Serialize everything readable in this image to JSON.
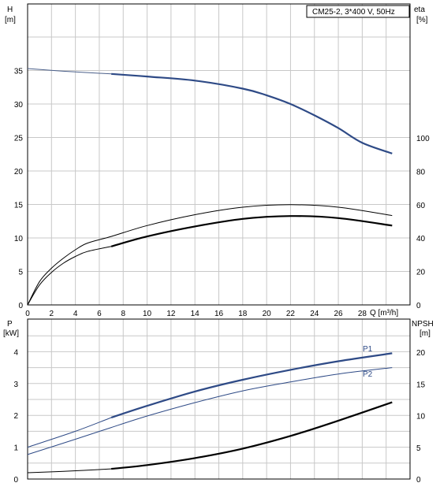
{
  "chart_data": [
    {
      "type": "line",
      "title": "CM25-2, 3*400 V, 50Hz",
      "left_axis": {
        "label": "H",
        "unit": "[m]",
        "ticks": [
          0,
          5,
          10,
          15,
          20,
          25,
          30,
          35
        ],
        "ylim": [
          0,
          40
        ]
      },
      "right_axis": {
        "label": "eta",
        "unit": "[%]",
        "ticks": [
          0,
          20,
          40,
          60,
          80,
          100
        ]
      },
      "x_axis": {
        "label": "Q [m³/h]",
        "ticks": [
          0,
          2,
          4,
          6,
          8,
          10,
          12,
          14,
          16,
          18,
          20,
          22,
          24,
          26,
          28
        ],
        "xlim": [
          0,
          32
        ]
      },
      "grid": true,
      "series": [
        {
          "axis": "left",
          "style": "thin",
          "color": "#4a5f8a",
          "x": [
            0,
            3,
            7
          ],
          "y": [
            35.3,
            34.9,
            34.5
          ]
        },
        {
          "axis": "left",
          "style": "thick",
          "color": "#2e4a86",
          "x": [
            7,
            10,
            14,
            18,
            20,
            22,
            24,
            26,
            28,
            30.5
          ],
          "y": [
            34.5,
            34.1,
            33.5,
            32.3,
            31.3,
            30.0,
            28.3,
            26.4,
            24.2,
            22.6
          ]
        },
        {
          "axis": "right",
          "style": "thin",
          "color": "#000000",
          "x": [
            0,
            1,
            2,
            3,
            4,
            5,
            7,
            10,
            14,
            18,
            22,
            26,
            30.5
          ],
          "y": [
            0,
            14,
            22,
            28,
            33,
            37,
            41,
            47.5,
            54,
            58.5,
            60,
            58.5,
            53.5
          ]
        },
        {
          "axis": "right",
          "style": "thin",
          "color": "#000000",
          "x": [
            0,
            1,
            2,
            3,
            4,
            5,
            7
          ],
          "y": [
            0,
            12,
            19.5,
            25,
            29,
            32,
            35
          ]
        },
        {
          "axis": "right",
          "style": "thick",
          "color": "#000000",
          "x": [
            7,
            10,
            14,
            18,
            22,
            26,
            30.5
          ],
          "y": [
            35,
            41,
            47,
            51.5,
            53.2,
            52,
            47.5
          ]
        }
      ]
    },
    {
      "type": "line",
      "left_axis": {
        "label": "P",
        "unit": "[kW]",
        "ticks": [
          0,
          1,
          2,
          3,
          4
        ],
        "ylim": [
          0,
          4.5
        ]
      },
      "right_axis": {
        "label": "NPSH",
        "unit": "[m]",
        "ticks": [
          0,
          5,
          10,
          15,
          20
        ]
      },
      "grid": true,
      "series": [
        {
          "name": "P1",
          "axis": "left",
          "style": "thin",
          "color": "#2e4a86",
          "x": [
            0,
            4,
            7
          ],
          "y": [
            1.0,
            1.5,
            1.93
          ]
        },
        {
          "name": "P1",
          "axis": "left",
          "style": "thick",
          "color": "#2e4a86",
          "x": [
            7,
            10,
            14,
            18,
            22,
            26,
            30.5
          ],
          "y": [
            1.93,
            2.3,
            2.75,
            3.12,
            3.43,
            3.7,
            3.95
          ]
        },
        {
          "name": "P2",
          "axis": "left",
          "style": "thin",
          "color": "#2e4a86",
          "x": [
            0,
            4,
            7,
            10,
            14,
            18,
            22,
            26,
            30.5
          ],
          "y": [
            0.77,
            1.25,
            1.62,
            1.98,
            2.4,
            2.77,
            3.05,
            3.3,
            3.5
          ]
        },
        {
          "axis": "right",
          "style": "thin",
          "color": "#000000",
          "x": [
            0,
            3,
            7
          ],
          "y": [
            1.0,
            1.2,
            1.6
          ]
        },
        {
          "axis": "right",
          "style": "thick",
          "color": "#000000",
          "x": [
            7,
            10,
            14,
            18,
            22,
            26,
            30.5
          ],
          "y": [
            1.6,
            2.2,
            3.3,
            4.8,
            6.8,
            9.2,
            12.1
          ]
        }
      ],
      "labels": {
        "p1": "P1",
        "p2": "P2"
      }
    }
  ]
}
